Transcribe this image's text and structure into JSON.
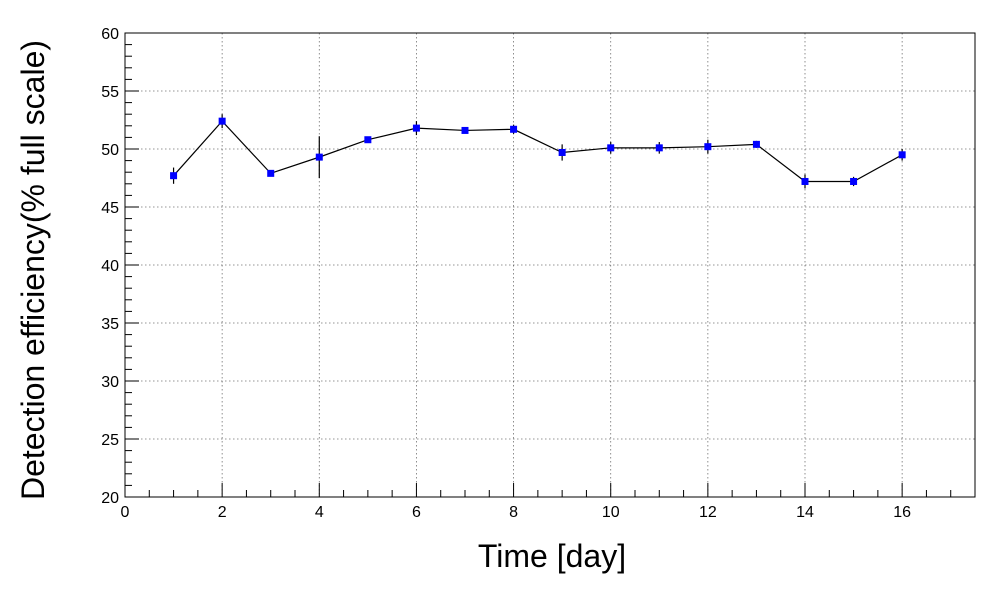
{
  "chart_data": {
    "type": "scatter",
    "title": "",
    "xlabel": "Time [day]",
    "ylabel": "Detection efficiency(% full scale)",
    "xlim": [
      0,
      17.5
    ],
    "ylim": [
      20,
      60
    ],
    "x_ticks": [
      0,
      2,
      4,
      6,
      8,
      10,
      12,
      14,
      16
    ],
    "y_ticks": [
      20,
      25,
      30,
      35,
      40,
      45,
      50,
      55,
      60
    ],
    "x_tick_labels": [
      "0",
      "2",
      "4",
      "6",
      "8",
      "10",
      "12",
      "14",
      "16"
    ],
    "y_tick_labels": [
      "20",
      "25",
      "30",
      "35",
      "40",
      "45",
      "50",
      "55",
      "60"
    ],
    "grid": true,
    "marker_color": "#0000ff",
    "line_color": "#000000",
    "series": [
      {
        "x": [
          1,
          2,
          3,
          4,
          5,
          6,
          7,
          8,
          9,
          10,
          11,
          12,
          13,
          14,
          15,
          16
        ],
        "y": [
          47.7,
          52.4,
          47.9,
          49.3,
          50.8,
          51.8,
          51.6,
          51.7,
          49.7,
          50.1,
          50.1,
          50.2,
          50.4,
          47.2,
          47.2,
          49.5
        ],
        "yerr": [
          0.7,
          0.6,
          0.2,
          1.8,
          0.2,
          0.6,
          0.2,
          0.4,
          0.7,
          0.5,
          0.5,
          0.6,
          0.3,
          0.6,
          0.4,
          0.5
        ]
      }
    ]
  }
}
